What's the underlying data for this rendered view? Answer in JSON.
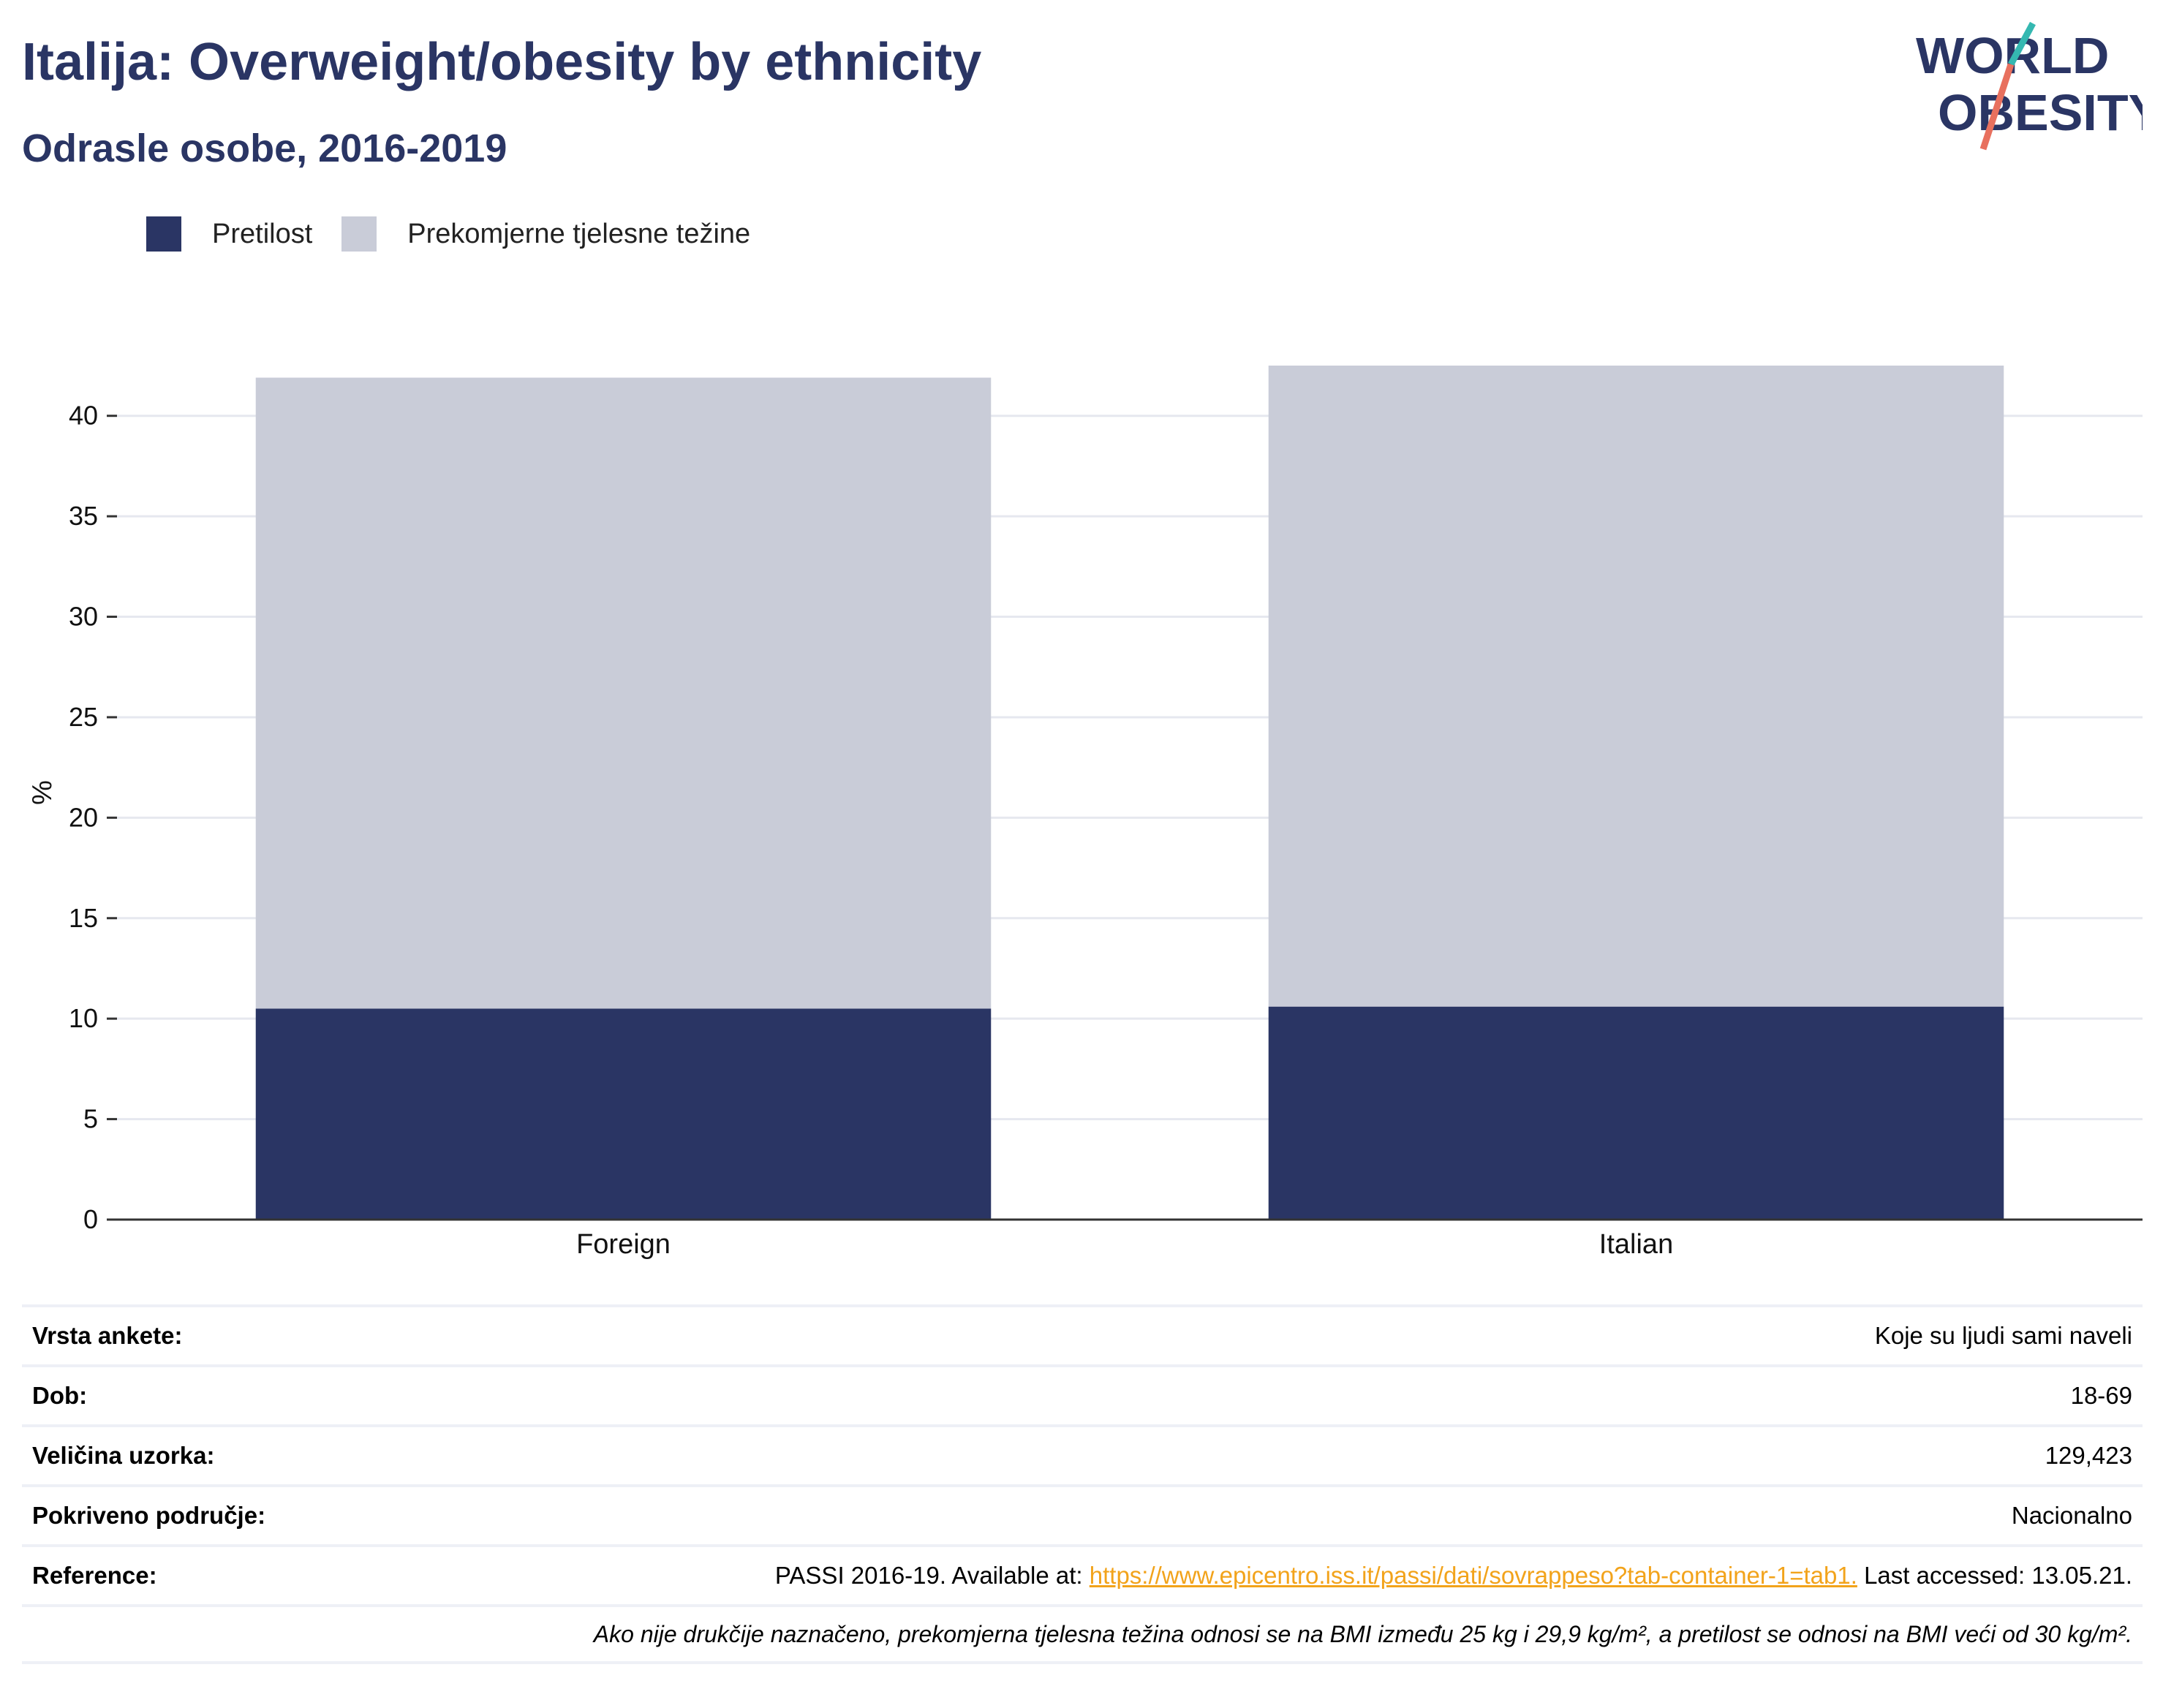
{
  "header": {
    "title": "Italija: Overweight/obesity by ethnicity",
    "subtitle": "Odrasle osobe, 2016-2019"
  },
  "logo": {
    "line1": "WORLD",
    "line2": "OBESITY",
    "colors": {
      "text": "#2a3564",
      "slash_top": "#35b8b1",
      "slash_bottom": "#e8705e"
    }
  },
  "legend": [
    {
      "label": "Pretilost",
      "color": "#2a3564"
    },
    {
      "label": "Prekomjerne tjelesne težine",
      "color": "#c9ccd8"
    }
  ],
  "chart_data": {
    "type": "bar",
    "stacked": true,
    "categories": [
      "Foreign",
      "Italian"
    ],
    "series": [
      {
        "name": "Pretilost",
        "color": "#2a3564",
        "values": [
          10.5,
          10.6
        ]
      },
      {
        "name": "Prekomjerne tjelesne težine",
        "color": "#c9ccd8",
        "values": [
          31.4,
          31.9
        ]
      }
    ],
    "ylabel": "%",
    "ylim": [
      0,
      42.5
    ],
    "yticks": [
      0,
      5,
      10,
      15,
      20,
      25,
      30,
      35,
      40
    ],
    "grid": true,
    "legend_position": "top-left"
  },
  "info": {
    "rows": [
      {
        "key": "Vrsta ankete:",
        "value": "Koje su ljudi sami naveli"
      },
      {
        "key": "Dob:",
        "value": "18-69"
      },
      {
        "key": "Veličina uzorka:",
        "value": "129,423"
      },
      {
        "key": "Pokriveno područje:",
        "value": "Nacionalno"
      }
    ],
    "reference": {
      "key": "Reference:",
      "prefix": "PASSI 2016-19. Available at: ",
      "link": "https://www.epicentro.iss.it/passi/dati/sovrappeso?tab-container-1=tab1.",
      "suffix": " Last accessed: 13.05.21."
    },
    "footnote": "Ako nije drukčije naznačeno, prekomjerna tjelesna težina odnosi se na BMI između 25 kg i 29,9 kg/m², a pretilost se odnosi na BMI veći od 30 kg/m²."
  }
}
